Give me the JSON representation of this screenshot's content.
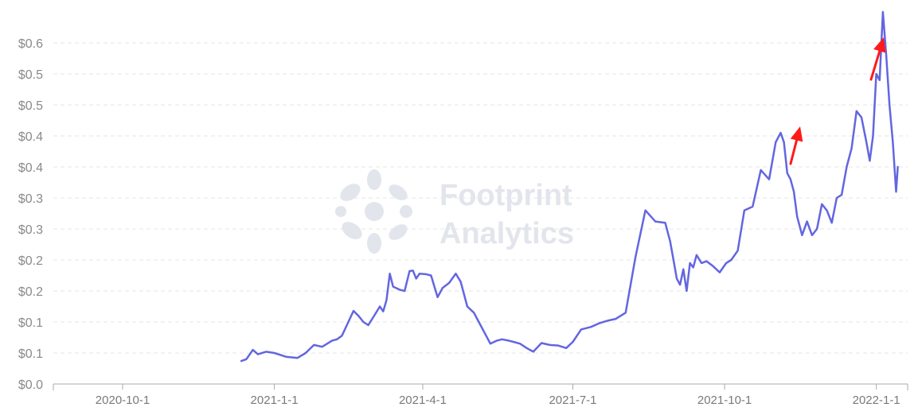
{
  "chart_data": {
    "type": "line",
    "title": "",
    "xlabel": "",
    "ylabel": "",
    "ylim": [
      0,
      0.6
    ],
    "y_ticks": [
      {
        "value": 0.0,
        "label": "$0.0"
      },
      {
        "value": 0.05,
        "label": "$0.1"
      },
      {
        "value": 0.1,
        "label": "$0.1"
      },
      {
        "value": 0.15,
        "label": "$0.2"
      },
      {
        "value": 0.2,
        "label": "$0.2"
      },
      {
        "value": 0.25,
        "label": "$0.3"
      },
      {
        "value": 0.3,
        "label": "$0.3"
      },
      {
        "value": 0.35,
        "label": "$0.4"
      },
      {
        "value": 0.4,
        "label": "$0.4"
      },
      {
        "value": 0.45,
        "label": "$0.5"
      },
      {
        "value": 0.5,
        "label": "$0.5"
      },
      {
        "value": 0.55,
        "label": "$0.6"
      }
    ],
    "x_range": [
      "2020-08-20",
      "2022-01-20"
    ],
    "x_ticks": [
      "2020-10-1",
      "2021-1-1",
      "2021-4-1",
      "2021-7-1",
      "2021-10-1",
      "2022-1-1"
    ],
    "grid": "horizontal dashed",
    "line_color": "#6366e0",
    "annotation_color": "#ff1a1a",
    "annotations": [
      {
        "type": "arrow",
        "points_to": "2021-11-11"
      },
      {
        "type": "arrow",
        "points_to": "2022-01-07"
      }
    ],
    "series": [
      {
        "x": [
          "2020-12-12",
          "2020-12-15",
          "2020-12-19",
          "2020-12-22",
          "2020-12-27",
          "2021-01-01",
          "2021-01-08",
          "2021-01-15",
          "2021-01-20",
          "2021-01-25",
          "2021-01-30",
          "2021-02-02",
          "2021-02-05",
          "2021-02-08",
          "2021-02-11",
          "2021-02-14",
          "2021-02-18",
          "2021-02-21",
          "2021-02-24",
          "2021-02-27",
          "2021-03-03",
          "2021-03-06",
          "2021-03-08",
          "2021-03-10",
          "2021-03-12",
          "2021-03-14",
          "2021-03-18",
          "2021-03-21",
          "2021-03-24",
          "2021-03-26",
          "2021-03-28",
          "2021-03-30",
          "2021-04-03",
          "2021-04-06",
          "2021-04-10",
          "2021-04-13",
          "2021-04-17",
          "2021-04-21",
          "2021-04-24",
          "2021-04-28",
          "2021-05-02",
          "2021-05-05",
          "2021-05-08",
          "2021-05-12",
          "2021-05-16",
          "2021-05-19",
          "2021-05-23",
          "2021-05-26",
          "2021-05-30",
          "2021-06-03",
          "2021-06-07",
          "2021-06-12",
          "2021-06-17",
          "2021-06-22",
          "2021-06-27",
          "2021-07-01",
          "2021-07-06",
          "2021-07-12",
          "2021-07-17",
          "2021-07-22",
          "2021-07-27",
          "2021-08-02",
          "2021-08-08",
          "2021-08-14",
          "2021-08-20",
          "2021-08-26",
          "2021-08-29",
          "2021-08-31",
          "2021-09-02",
          "2021-09-04",
          "2021-09-06",
          "2021-09-08",
          "2021-09-10",
          "2021-09-12",
          "2021-09-14",
          "2021-09-17",
          "2021-09-20",
          "2021-09-24",
          "2021-09-28",
          "2021-10-02",
          "2021-10-05",
          "2021-10-09",
          "2021-10-13",
          "2021-10-18",
          "2021-10-23",
          "2021-10-28",
          "2021-11-01",
          "2021-11-04",
          "2021-11-06",
          "2021-11-08",
          "2021-11-10",
          "2021-11-12",
          "2021-11-14",
          "2021-11-17",
          "2021-11-20",
          "2021-11-23",
          "2021-11-26",
          "2021-11-29",
          "2021-12-02",
          "2021-12-05",
          "2021-12-08",
          "2021-12-11",
          "2021-12-14",
          "2021-12-17",
          "2021-12-20",
          "2021-12-23",
          "2021-12-26",
          "2021-12-28",
          "2021-12-30",
          "2022-01-01",
          "2022-01-03",
          "2022-01-05",
          "2022-01-07",
          "2022-01-09",
          "2022-01-11",
          "2022-01-13",
          "2022-01-14"
        ],
        "y": [
          0.037,
          0.04,
          0.055,
          0.048,
          0.052,
          0.05,
          0.044,
          0.042,
          0.05,
          0.063,
          0.06,
          0.065,
          0.07,
          0.072,
          0.078,
          0.095,
          0.118,
          0.11,
          0.1,
          0.095,
          0.112,
          0.125,
          0.117,
          0.135,
          0.178,
          0.157,
          0.152,
          0.15,
          0.182,
          0.183,
          0.17,
          0.178,
          0.177,
          0.175,
          0.14,
          0.155,
          0.163,
          0.178,
          0.165,
          0.125,
          0.115,
          0.1,
          0.085,
          0.065,
          0.07,
          0.072,
          0.07,
          0.068,
          0.065,
          0.058,
          0.052,
          0.066,
          0.063,
          0.062,
          0.058,
          0.068,
          0.088,
          0.092,
          0.098,
          0.102,
          0.105,
          0.115,
          0.205,
          0.28,
          0.262,
          0.26,
          0.23,
          0.2,
          0.17,
          0.16,
          0.185,
          0.15,
          0.195,
          0.188,
          0.208,
          0.195,
          0.198,
          0.19,
          0.18,
          0.195,
          0.2,
          0.215,
          0.28,
          0.286,
          0.345,
          0.33,
          0.39,
          0.405,
          0.39,
          0.34,
          0.33,
          0.31,
          0.27,
          0.24,
          0.262,
          0.24,
          0.25,
          0.29,
          0.28,
          0.26,
          0.3,
          0.305,
          0.35,
          0.38,
          0.44,
          0.43,
          0.39,
          0.36,
          0.4,
          0.5,
          0.49,
          0.6,
          0.53,
          0.45,
          0.39,
          0.31,
          0.35
        ]
      }
    ]
  }
}
